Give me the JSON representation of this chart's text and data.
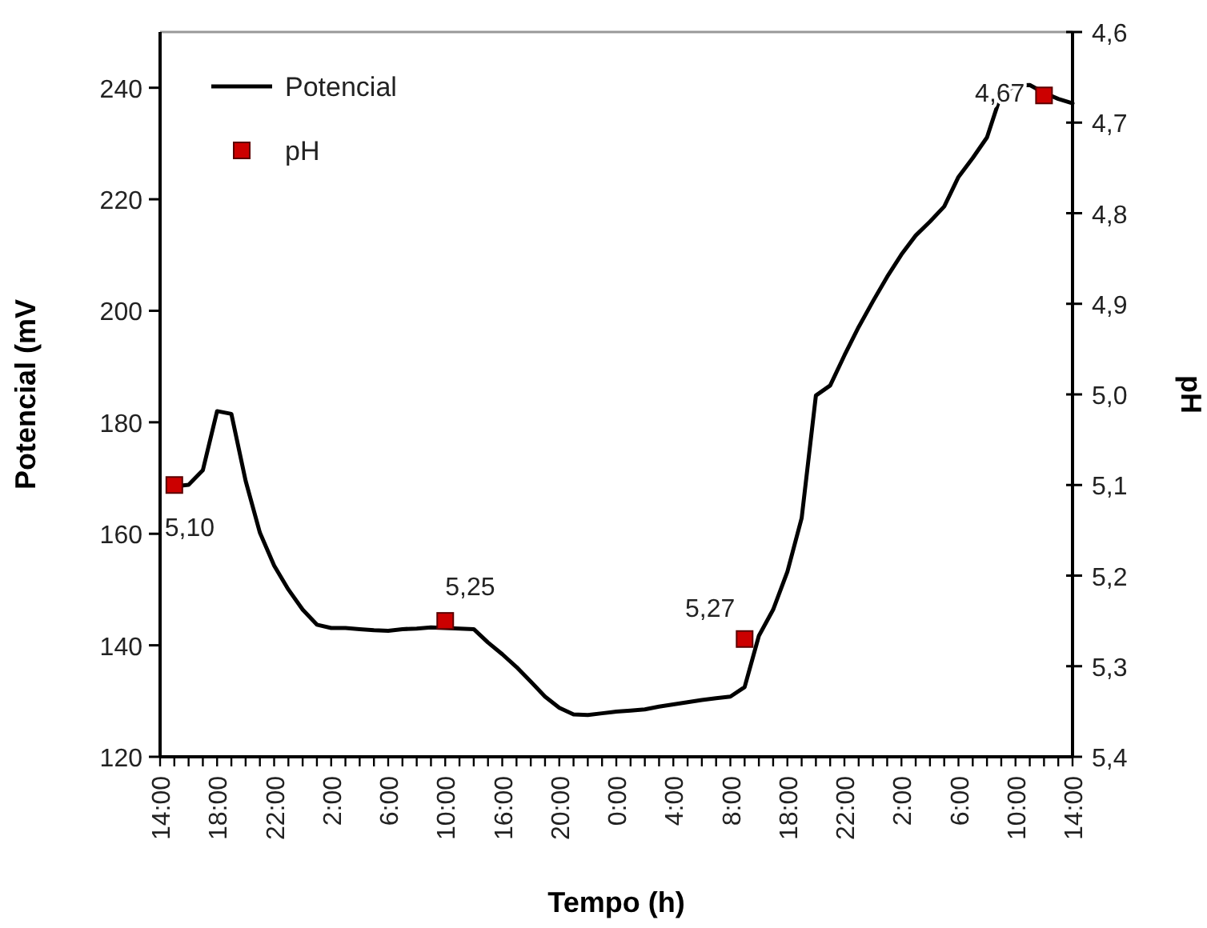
{
  "chart_data": {
    "type": "line",
    "xlabel": "Tempo (h)",
    "ylabel": "Potencial (mV",
    "y2label": "pH",
    "categories": [
      "14:00",
      null,
      null,
      null,
      "18:00",
      null,
      null,
      null,
      "22:00",
      null,
      null,
      null,
      "2:00",
      null,
      null,
      null,
      "6:00",
      null,
      null,
      null,
      "10:00",
      null,
      null,
      null,
      "16:00",
      null,
      null,
      null,
      "20:00",
      null,
      null,
      null,
      "0:00",
      null,
      null,
      null,
      "4:00",
      null,
      null,
      null,
      "8:00",
      null,
      null,
      null,
      "18:00",
      null,
      null,
      null,
      "22:00",
      null,
      null,
      null,
      "2:00",
      null,
      null,
      null,
      "6:00",
      null,
      null,
      null,
      "10:00",
      null,
      null,
      null,
      "14:00"
    ],
    "ylim": [
      120,
      250
    ],
    "yticks": [
      120,
      140,
      160,
      180,
      200,
      220,
      240
    ],
    "y2lim": [
      5.4,
      4.6
    ],
    "y2ticks": [
      {
        "value": 4.6,
        "label": "4,6"
      },
      {
        "value": 4.7,
        "label": "4,7"
      },
      {
        "value": 4.8,
        "label": "4,8"
      },
      {
        "value": 4.9,
        "label": "4,9"
      },
      {
        "value": 5.0,
        "label": "5,0"
      },
      {
        "value": 5.1,
        "label": "5,1"
      },
      {
        "value": 5.2,
        "label": "5,2"
      },
      {
        "value": 5.3,
        "label": "5,3"
      },
      {
        "value": 5.4,
        "label": "5,4"
      }
    ],
    "legend": "top left",
    "grid": false,
    "series": [
      {
        "name": "Potencial",
        "color": "#000000",
        "marker": "none",
        "line_style": "solid",
        "values": [
          null,
          168.5,
          168.8,
          171.4,
          182.0,
          181.5,
          169.5,
          160.2,
          154.3,
          150.0,
          146.4,
          143.7,
          143.1,
          143.1,
          142.9,
          142.7,
          142.6,
          142.9,
          143.0,
          143.2,
          143.1,
          143.0,
          142.9,
          140.5,
          138.4,
          136.1,
          133.5,
          130.8,
          128.8,
          127.6,
          127.5,
          127.8,
          128.1,
          128.3,
          128.5,
          129.0,
          129.4,
          129.8,
          130.2,
          130.5,
          130.8,
          132.5,
          141.7,
          146.4,
          153.2,
          162.8,
          184.8,
          186.6,
          192.0,
          197.1,
          201.7,
          206.1,
          210.1,
          213.5,
          216.0,
          218.7,
          224.0,
          227.4,
          231.1,
          238.9,
          240.4,
          240.5,
          239.1,
          238.0,
          237.2
        ]
      },
      {
        "name": "pH",
        "type": "scatter",
        "axis": "y2",
        "color": "#cc0000",
        "marker": "square",
        "values": [
          null,
          5.1,
          null,
          null,
          null,
          null,
          null,
          null,
          null,
          null,
          null,
          null,
          null,
          null,
          null,
          null,
          null,
          null,
          null,
          null,
          5.25,
          null,
          null,
          null,
          null,
          null,
          null,
          null,
          null,
          null,
          null,
          null,
          null,
          null,
          null,
          null,
          null,
          null,
          null,
          null,
          null,
          5.27,
          null,
          null,
          null,
          null,
          null,
          null,
          null,
          null,
          null,
          null,
          null,
          null,
          null,
          null,
          null,
          null,
          null,
          null,
          null,
          null,
          4.67,
          null,
          null
        ],
        "value_labels": [
          null,
          "5,10",
          null,
          null,
          null,
          null,
          null,
          null,
          null,
          null,
          null,
          null,
          null,
          null,
          null,
          null,
          null,
          null,
          null,
          null,
          "5,25",
          null,
          null,
          null,
          null,
          null,
          null,
          null,
          null,
          null,
          null,
          null,
          null,
          null,
          null,
          null,
          null,
          null,
          null,
          null,
          null,
          "5,27",
          null,
          null,
          null,
          null,
          null,
          null,
          null,
          null,
          null,
          null,
          null,
          null,
          null,
          null,
          null,
          null,
          null,
          null,
          null,
          null,
          "4,67",
          null,
          null
        ]
      }
    ]
  }
}
